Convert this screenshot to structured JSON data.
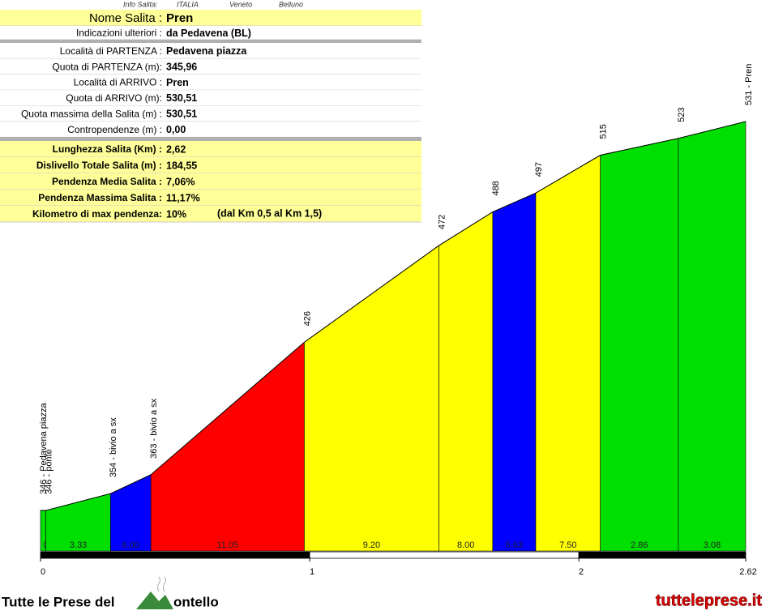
{
  "info": {
    "header": [
      "Info Salita:",
      "ITALIA",
      "Veneto",
      "Belluno"
    ],
    "name": {
      "label": "Nome Salita :",
      "value": "Pren"
    },
    "notes": {
      "label": "Indicazioni ulteriori :",
      "value": "da Pedavena (BL)"
    },
    "details": [
      {
        "label": "Località di PARTENZA :",
        "value": "Pedavena piazza"
      },
      {
        "label": "Quota di PARTENZA (m):",
        "value": "345,96"
      },
      {
        "label": "Località di ARRIVO :",
        "value": "Pren"
      },
      {
        "label": "Quota di ARRIVO (m):",
        "value": "530,51"
      },
      {
        "label": "Quota massima della Salita (m) :",
        "value": "530,51"
      },
      {
        "label": "Contropendenze (m) :",
        "value": "0,00"
      }
    ],
    "summary": [
      {
        "label": "Lunghezza Salita (Km) :",
        "value": "2,62"
      },
      {
        "label": "Dislivello Totale Salita (m) :",
        "value": "184,55"
      },
      {
        "label": "Pendenza Media Salita :",
        "value": "7,06%"
      },
      {
        "label": "Pendenza Massima Salita :",
        "value": "11,17%"
      },
      {
        "label": "Kilometro di max pendenza:",
        "value": "10%"
      }
    ],
    "summary_note": "(dal Km 0,5 al Km 1,5)"
  },
  "chart_data": {
    "type": "profile",
    "x": [
      0,
      0.02,
      0.26,
      0.41,
      0.98,
      1.48,
      1.68,
      1.84,
      2.08,
      2.37,
      2.62
    ],
    "elevations": [
      346,
      346,
      354,
      363,
      426,
      472,
      488,
      497,
      515,
      523,
      531
    ],
    "point_labels": [
      "346 - Pedavena piazza",
      "346 - ponte",
      "354 - bivio a sx",
      "363 - bivio a sx",
      null,
      null,
      null,
      null,
      null,
      null,
      "531 - Pren"
    ],
    "gradients": [
      0,
      3.33,
      6,
      11.05,
      9.2,
      8,
      5.63,
      7.5,
      2.86,
      3.08
    ],
    "gradient_labels": [
      "0",
      "3.33",
      "6.00",
      "11.05",
      "9.20",
      "8.00",
      "5.63",
      "7.50",
      "2.86",
      "3.08"
    ],
    "colors": [
      "#00e000",
      "#00e000",
      "#0000ff",
      "#ff0000",
      "#ffff00",
      "#ffff00",
      "#0000ff",
      "#ffff00",
      "#00e000",
      "#00e000"
    ],
    "xlim": [
      0,
      2.62
    ],
    "ylim": [
      326.7,
      531
    ],
    "xticks": [
      0,
      1,
      2,
      2.62
    ]
  },
  "footer": {
    "logo_left": "Tutte le Prese del",
    "logo_right": "ontello",
    "site": "tutteleprese.it"
  }
}
